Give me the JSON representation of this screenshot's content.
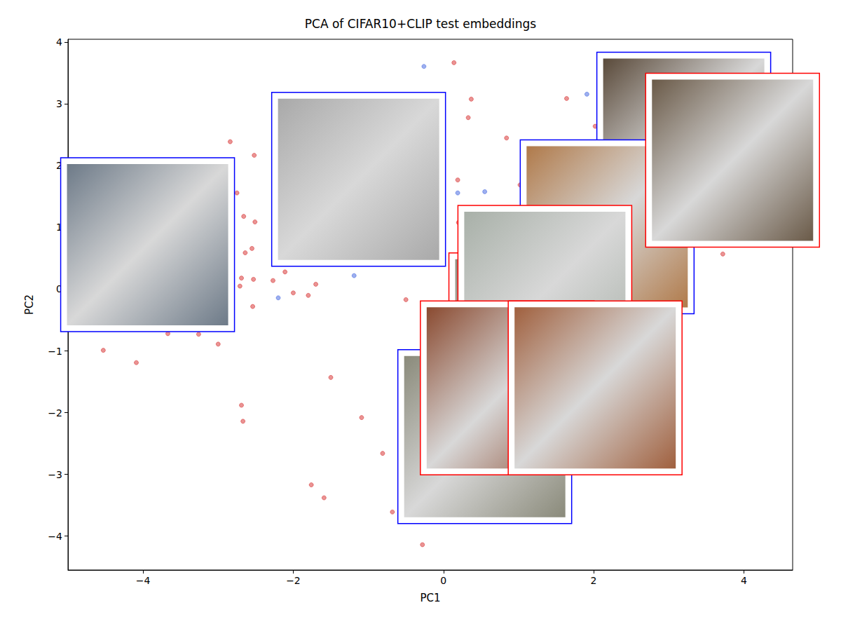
{
  "chart_data": {
    "type": "scatter",
    "title": "PCA of CIFAR10+CLIP test embeddings",
    "x_label": "PC1",
    "y_label": "PC2",
    "xlim": [
      -5,
      4.65
    ],
    "ylim": [
      -4.55,
      4.05
    ],
    "xticks": [
      {
        "value": -4,
        "label": "−4"
      },
      {
        "value": -2,
        "label": "−2"
      },
      0,
      2,
      4
    ],
    "yticks": [
      {
        "value": -4,
        "label": "−4"
      },
      {
        "value": -3,
        "label": "−3"
      },
      {
        "value": -2,
        "label": "−2"
      },
      {
        "value": -1,
        "label": "−1"
      },
      0,
      1,
      2,
      3,
      4
    ],
    "grid": false,
    "series": [
      {
        "color": "#d62728",
        "marker": "circle",
        "values": [
          [
            0.14,
            3.67
          ],
          [
            0.37,
            3.08
          ],
          [
            0.33,
            2.78
          ],
          [
            1.64,
            3.09
          ],
          [
            0.84,
            2.45
          ],
          [
            -2.84,
            2.39
          ],
          [
            -2.52,
            2.17
          ],
          [
            -2.75,
            1.56
          ],
          [
            -2.66,
            1.18
          ],
          [
            -2.51,
            1.09
          ],
          [
            -2.64,
            0.59
          ],
          [
            -2.55,
            0.66
          ],
          [
            -2.69,
            0.18
          ],
          [
            -2.71,
            0.05
          ],
          [
            -2.53,
            0.16
          ],
          [
            -2.54,
            -0.28
          ],
          [
            -2.27,
            0.14
          ],
          [
            -2.11,
            0.28
          ],
          [
            -2.0,
            -0.06
          ],
          [
            -1.8,
            -0.1
          ],
          [
            -1.7,
            0.08
          ],
          [
            -3.67,
            -0.72
          ],
          [
            -3.26,
            -0.73
          ],
          [
            -3.0,
            -0.89
          ],
          [
            -4.53,
            -0.99
          ],
          [
            -4.09,
            -1.19
          ],
          [
            -1.5,
            -1.43
          ],
          [
            -2.69,
            -1.88
          ],
          [
            -2.67,
            -2.14
          ],
          [
            -1.09,
            -2.08
          ],
          [
            -0.81,
            -2.66
          ],
          [
            -1.76,
            -3.17
          ],
          [
            -1.59,
            -3.38
          ],
          [
            -0.68,
            -3.61
          ],
          [
            -0.28,
            -4.14
          ],
          [
            -0.5,
            -0.17
          ],
          [
            0.19,
            1.77
          ],
          [
            3.72,
            0.57
          ],
          [
            2.02,
            2.64
          ],
          [
            1.02,
            1.69
          ],
          [
            0.2,
            1.08
          ]
        ]
      },
      {
        "color": "#3b5fe0",
        "marker": "circle",
        "values": [
          [
            -0.26,
            3.61
          ],
          [
            1.91,
            3.16
          ],
          [
            0.19,
            1.56
          ],
          [
            0.55,
            1.58
          ],
          [
            -1.19,
            0.22
          ],
          [
            -2.2,
            -0.14
          ]
        ]
      }
    ],
    "thumbnails": [
      {
        "x": -3.94,
        "y": 0.72,
        "color": "#0000ff",
        "fill": "#6d7a88"
      },
      {
        "x": -1.13,
        "y": 1.78,
        "color": "#0000ff",
        "fill": "#a9a9a9"
      },
      {
        "x": 3.2,
        "y": 2.43,
        "color": "#0000ff",
        "fill": "#5a4a3a"
      },
      {
        "x": 2.18,
        "y": 1.01,
        "color": "#0000ff",
        "fill": "#b07a4a"
      },
      {
        "x": 3.85,
        "y": 2.09,
        "color": "#ff0000",
        "fill": "#6a5a48"
      },
      {
        "x": 1.23,
        "y": -0.82,
        "color": "#ff0000",
        "fill": "#8f8f80"
      },
      {
        "x": 1.35,
        "y": -0.05,
        "color": "#ff0000",
        "fill": "#a8b0a8"
      },
      {
        "x": 0.55,
        "y": -2.39,
        "color": "#0000ff",
        "fill": "#8a8a7a"
      },
      {
        "x": 0.85,
        "y": -1.6,
        "color": "#ff0000",
        "fill": "#8a4a30"
      },
      {
        "x": 2.02,
        "y": -1.6,
        "color": "#ff0000",
        "fill": "#a0603e"
      }
    ]
  }
}
